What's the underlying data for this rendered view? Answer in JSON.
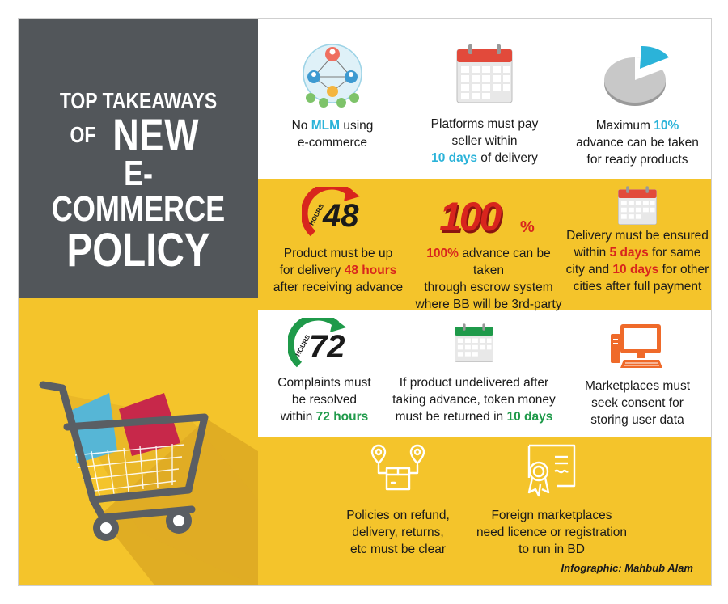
{
  "title": {
    "line1": "TOP TAKEAWAYS",
    "of": "OF",
    "new": "NEW",
    "line3": "E-COMMERCE",
    "line4": "POLICY"
  },
  "takeaways": {
    "mlm": {
      "pre": "No ",
      "hl": "MLM",
      "post": " using",
      "line2": "e-commerce",
      "icon": "network-people-icon"
    },
    "pay_seller": {
      "line1": "Platforms must pay",
      "line2": "seller within",
      "hl": "10 days",
      "post": " of delivery",
      "icon": "calendar-icon"
    },
    "advance_ready": {
      "pre": "Maximum ",
      "hl": "10%",
      "line2": "advance can be taken",
      "line3": "for ready products",
      "icon": "pie-chart-icon"
    },
    "up_48": {
      "badge_hours": "HOURS",
      "badge_num": "48",
      "line1": "Product must be up",
      "pre2": "for delivery ",
      "hl": "48 hours",
      "line3": "after receiving advance",
      "icon": "clock-arrow-icon"
    },
    "escrow": {
      "badge": "100",
      "badge_pct": "%",
      "hl": "100%",
      "post1": " advance can be taken",
      "line2": "through escrow system",
      "line3": "where BB will be 3rd-party",
      "icon": "percent-badge-icon"
    },
    "delivery_days": {
      "line1": "Delivery must be ensured",
      "pre2": "within ",
      "hl1": "5 days",
      "post2": " for same",
      "pre3": "city and ",
      "hl2": "10 days",
      "post3": " for other",
      "line4": "cities after full payment",
      "icon": "calendar-icon"
    },
    "complaints": {
      "badge_hours": "HOURS",
      "badge_num": "72",
      "line1": "Complaints must",
      "line2": "be resolved",
      "pre3": "within ",
      "hl": "72 hours",
      "icon": "clock-arrow-icon"
    },
    "undelivered": {
      "line1": "If product undelivered after",
      "line2": "taking advance, token money",
      "pre3": "must be returned in ",
      "hl": "10 days",
      "icon": "calendar-icon"
    },
    "consent": {
      "line1": "Marketplaces must",
      "line2": "seek consent for",
      "line3": "storing user data",
      "icon": "computer-icon"
    },
    "refund": {
      "line1": "Policies on refund,",
      "line2": "delivery, returns,",
      "line3": "etc must be clear",
      "icon": "delivery-box-icon"
    },
    "licence": {
      "line1": "Foreign marketplaces",
      "line2": "need licence or registration",
      "line3": "to run in BD",
      "icon": "certificate-icon"
    }
  },
  "credit": "Infographic: Mahbub Alam",
  "colors": {
    "dark_panel": "#52565a",
    "yellow": "#f4c42b",
    "blue_highlight": "#2bb3d9",
    "red_highlight": "#d8251d",
    "green_highlight": "#1f9a4a"
  }
}
